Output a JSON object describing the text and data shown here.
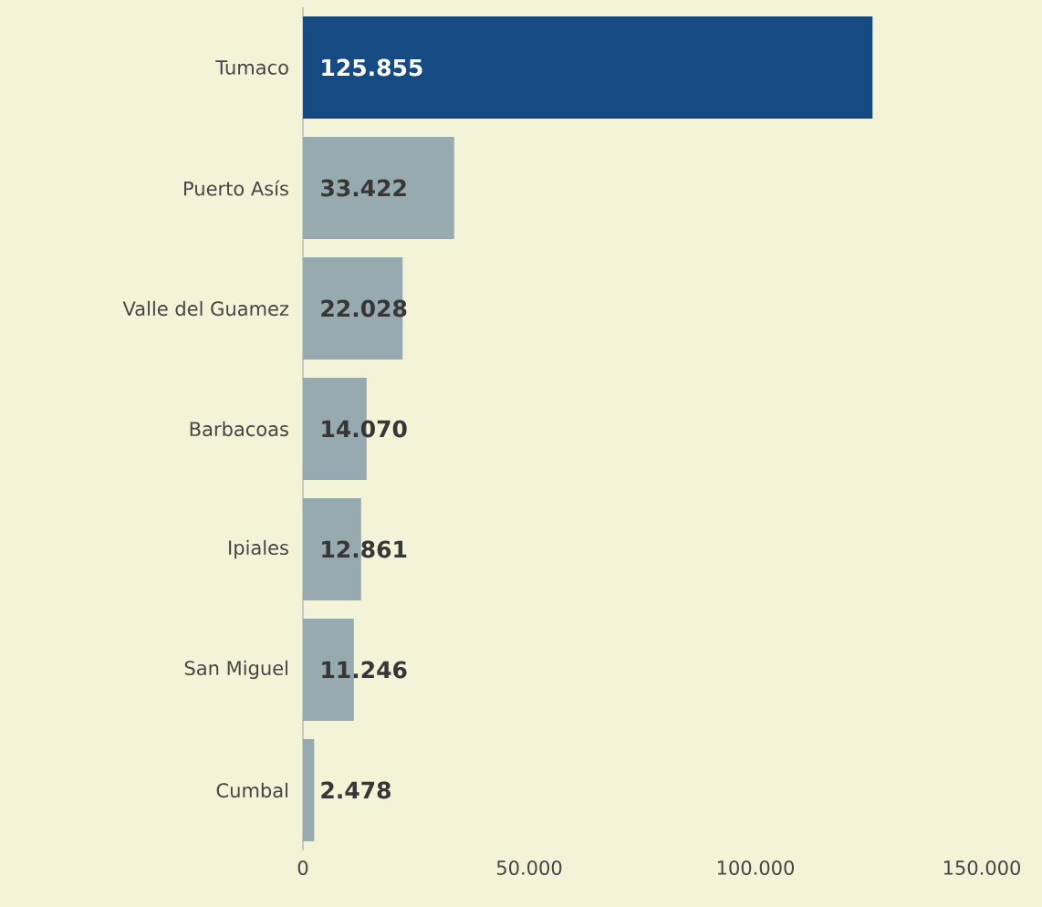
{
  "chart_data": {
    "type": "bar",
    "orientation": "horizontal",
    "categories": [
      "Tumaco",
      "Puerto Asís",
      "Valle del Guamez",
      "Barbacoas",
      "Ipiales",
      "San Miguel",
      "Cumbal"
    ],
    "values": [
      125855,
      33422,
      22028,
      14070,
      12861,
      11246,
      2478
    ],
    "value_labels": [
      "125.855",
      "33.422",
      "22.028",
      "14.070",
      "12.861",
      "11.246",
      "2.478"
    ],
    "colors": [
      "#154a83",
      "#97aab0",
      "#97aab0",
      "#97aab0",
      "#97aab0",
      "#97aab0",
      "#97aab0"
    ],
    "xlim": [
      0,
      150000
    ],
    "xticks": [
      {
        "value": 0,
        "label": "0"
      },
      {
        "value": 50000,
        "label": "50.000"
      },
      {
        "value": 100000,
        "label": "100.000"
      },
      {
        "value": 150000,
        "label": "150.000"
      }
    ],
    "grid": false
  }
}
